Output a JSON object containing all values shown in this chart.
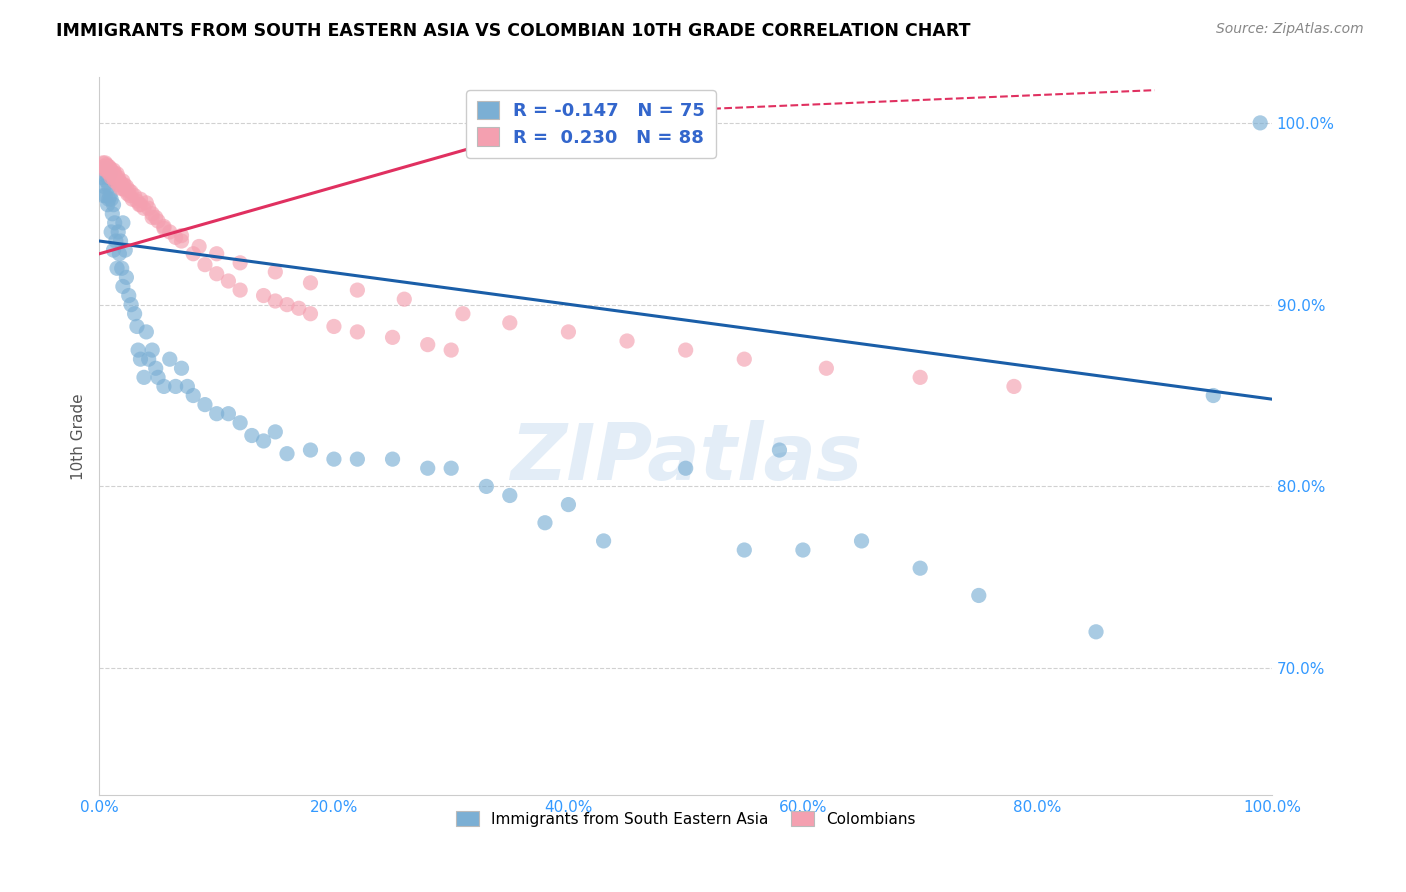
{
  "title": "IMMIGRANTS FROM SOUTH EASTERN ASIA VS COLOMBIAN 10TH GRADE CORRELATION CHART",
  "source": "Source: ZipAtlas.com",
  "ylabel": "10th Grade",
  "ytick_labels": [
    "100.0%",
    "90.0%",
    "80.0%",
    "70.0%"
  ],
  "ytick_values": [
    1.0,
    0.9,
    0.8,
    0.7
  ],
  "xlim": [
    0.0,
    1.0
  ],
  "ylim": [
    0.63,
    1.025
  ],
  "legend_labels": [
    "Immigrants from South Eastern Asia",
    "Colombians"
  ],
  "legend_r_blue": "R = -0.147",
  "legend_n_blue": "N = 75",
  "legend_r_pink": "R =  0.230",
  "legend_n_pink": "N = 88",
  "blue_color": "#7BAFD4",
  "pink_color": "#F4A0B0",
  "line_blue_color": "#1A5EA8",
  "line_pink_color": "#E03060",
  "watermark_text": "ZIPatlas",
  "blue_scatter_x": [
    0.002,
    0.003,
    0.004,
    0.005,
    0.005,
    0.006,
    0.007,
    0.007,
    0.008,
    0.008,
    0.009,
    0.009,
    0.01,
    0.01,
    0.011,
    0.012,
    0.012,
    0.013,
    0.014,
    0.015,
    0.016,
    0.017,
    0.018,
    0.019,
    0.02,
    0.02,
    0.022,
    0.023,
    0.025,
    0.027,
    0.03,
    0.032,
    0.033,
    0.035,
    0.038,
    0.04,
    0.042,
    0.045,
    0.048,
    0.05,
    0.055,
    0.06,
    0.065,
    0.07,
    0.075,
    0.08,
    0.09,
    0.1,
    0.11,
    0.12,
    0.13,
    0.14,
    0.15,
    0.16,
    0.18,
    0.2,
    0.22,
    0.25,
    0.28,
    0.3,
    0.33,
    0.35,
    0.38,
    0.4,
    0.43,
    0.5,
    0.55,
    0.58,
    0.6,
    0.65,
    0.7,
    0.75,
    0.85,
    0.95,
    0.99
  ],
  "blue_scatter_y": [
    0.97,
    0.96,
    0.965,
    0.96,
    0.975,
    0.968,
    0.97,
    0.955,
    0.965,
    0.958,
    0.96,
    0.972,
    0.958,
    0.94,
    0.95,
    0.955,
    0.93,
    0.945,
    0.935,
    0.92,
    0.94,
    0.928,
    0.935,
    0.92,
    0.945,
    0.91,
    0.93,
    0.915,
    0.905,
    0.9,
    0.895,
    0.888,
    0.875,
    0.87,
    0.86,
    0.885,
    0.87,
    0.875,
    0.865,
    0.86,
    0.855,
    0.87,
    0.855,
    0.865,
    0.855,
    0.85,
    0.845,
    0.84,
    0.84,
    0.835,
    0.828,
    0.825,
    0.83,
    0.818,
    0.82,
    0.815,
    0.815,
    0.815,
    0.81,
    0.81,
    0.8,
    0.795,
    0.78,
    0.79,
    0.77,
    0.81,
    0.765,
    0.82,
    0.765,
    0.77,
    0.755,
    0.74,
    0.72,
    0.85,
    1.0
  ],
  "pink_scatter_x": [
    0.002,
    0.003,
    0.004,
    0.005,
    0.005,
    0.006,
    0.006,
    0.007,
    0.007,
    0.008,
    0.008,
    0.009,
    0.009,
    0.01,
    0.01,
    0.011,
    0.012,
    0.012,
    0.013,
    0.013,
    0.014,
    0.015,
    0.015,
    0.016,
    0.016,
    0.017,
    0.018,
    0.018,
    0.019,
    0.02,
    0.02,
    0.021,
    0.022,
    0.023,
    0.024,
    0.025,
    0.026,
    0.027,
    0.028,
    0.03,
    0.032,
    0.034,
    0.035,
    0.038,
    0.04,
    0.042,
    0.045,
    0.048,
    0.05,
    0.055,
    0.06,
    0.065,
    0.07,
    0.08,
    0.09,
    0.1,
    0.11,
    0.12,
    0.14,
    0.15,
    0.16,
    0.17,
    0.18,
    0.2,
    0.22,
    0.25,
    0.28,
    0.3,
    0.035,
    0.045,
    0.055,
    0.07,
    0.085,
    0.1,
    0.12,
    0.15,
    0.18,
    0.22,
    0.26,
    0.31,
    0.35,
    0.4,
    0.45,
    0.5,
    0.55,
    0.62,
    0.7,
    0.78
  ],
  "pink_scatter_y": [
    0.975,
    0.978,
    0.976,
    0.978,
    0.975,
    0.977,
    0.974,
    0.976,
    0.973,
    0.976,
    0.974,
    0.975,
    0.972,
    0.974,
    0.97,
    0.972,
    0.974,
    0.97,
    0.972,
    0.968,
    0.97,
    0.972,
    0.968,
    0.97,
    0.966,
    0.968,
    0.967,
    0.964,
    0.966,
    0.968,
    0.964,
    0.966,
    0.963,
    0.965,
    0.961,
    0.963,
    0.96,
    0.962,
    0.958,
    0.96,
    0.957,
    0.955,
    0.958,
    0.953,
    0.956,
    0.953,
    0.95,
    0.948,
    0.946,
    0.943,
    0.94,
    0.937,
    0.935,
    0.928,
    0.922,
    0.917,
    0.913,
    0.908,
    0.905,
    0.902,
    0.9,
    0.898,
    0.895,
    0.888,
    0.885,
    0.882,
    0.878,
    0.875,
    0.955,
    0.948,
    0.942,
    0.938,
    0.932,
    0.928,
    0.923,
    0.918,
    0.912,
    0.908,
    0.903,
    0.895,
    0.89,
    0.885,
    0.88,
    0.875,
    0.87,
    0.865,
    0.86,
    0.855
  ],
  "blue_line_x": [
    0.0,
    1.0
  ],
  "blue_line_y": [
    0.935,
    0.848
  ],
  "pink_line_x": [
    0.0,
    0.42
  ],
  "pink_line_y": [
    0.928,
    1.005
  ],
  "dashed_line_x": [
    0.42,
    0.9
  ],
  "dashed_line_y": [
    1.005,
    1.018
  ],
  "xtick_positions": [
    0.0,
    0.2,
    0.4,
    0.6,
    0.8,
    1.0
  ],
  "xtick_labels": [
    "0.0%",
    "20.0%",
    "40.0%",
    "60.0%",
    "80.0%",
    "100.0%"
  ]
}
